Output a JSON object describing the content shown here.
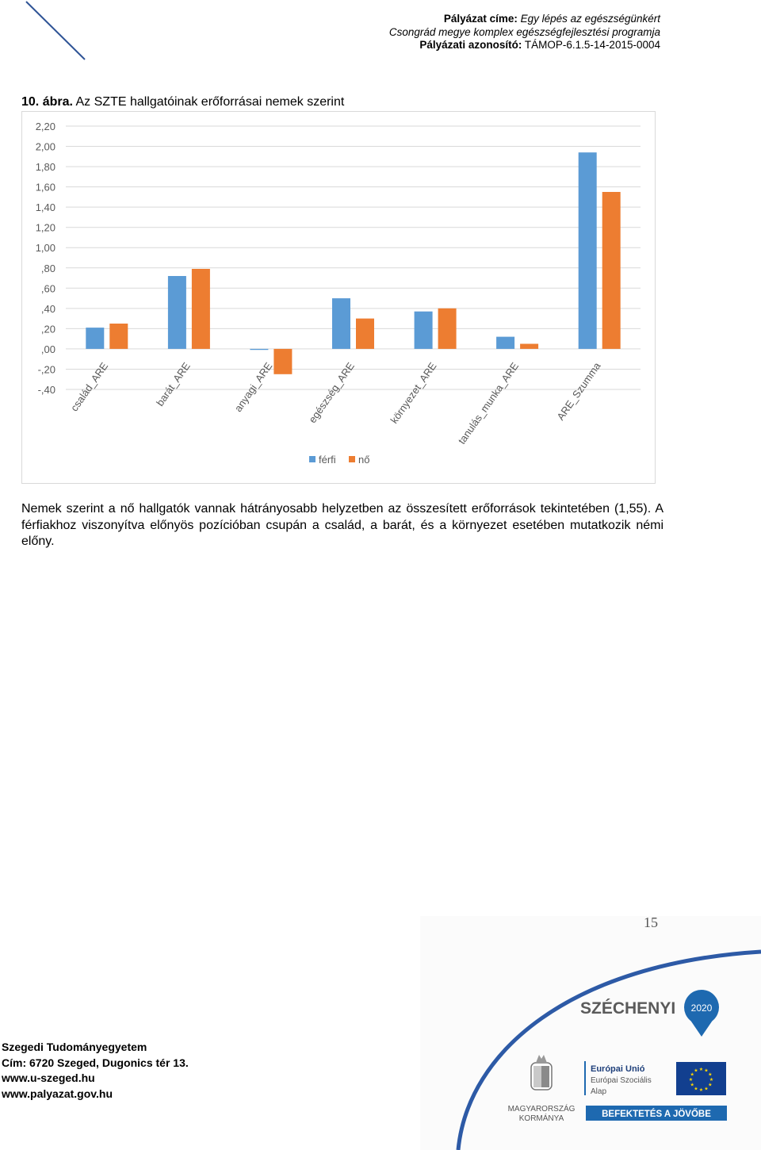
{
  "header": {
    "title_label": "Pályázat címe:",
    "title_value": "Egy lépés az egészségünkért",
    "program": "Csongrád megye komplex egészségfejlesztési programja",
    "id_label": "Pályázati azonosító:",
    "id_value": "TÁMOP-6.1.5-14-2015-0004"
  },
  "figure": {
    "label": "10. ábra.",
    "title": "Az SZTE hallgatóinak erőforrásai nemek szerint"
  },
  "body": {
    "paragraph": "Nemek szerint a nő hallgatók vannak hátrányosabb helyzetben az összesített erőforrások tekintetében (1,55). A férfiakhoz viszonyítva előnyös pozícióban csupán a család, a barát, és a környezet esetében mutatkozik némi előny."
  },
  "page_number": "15",
  "footer": {
    "institution": "Szegedi Tudományegyetem",
    "address": "Cím: 6720 Szeged, Dugonics tér 13.",
    "web1": "www.u-szeged.hu",
    "web2": "www.palyazat.gov.hu"
  },
  "logos": {
    "szechenyi": "SZÉCHENYI",
    "szechenyi_year": "2020",
    "gov_line1": "MAGYARORSZÁG",
    "gov_line2": "KORMÁNYA",
    "eu_line1": "Európai Unió",
    "eu_line2": "Európai Szociális",
    "eu_line3": "Alap",
    "eu_banner": "BEFEKTETÉS A JÖVŐBE"
  },
  "colors": {
    "ferfi": "#5b9bd5",
    "no": "#ed7d31",
    "grid": "#d9d9d9",
    "axis_text": "#595959"
  },
  "chart_data": {
    "type": "bar",
    "title": "",
    "xlabel": "",
    "ylabel": "",
    "categories": [
      "család_ARE",
      "barát_ARE",
      "anyagi_ARE",
      "egészség_ARE",
      "környezet_ARE",
      "tanulás_munka_ARE",
      "ARE_Szumma"
    ],
    "series": [
      {
        "name": "férfi",
        "values": [
          0.21,
          0.72,
          -0.01,
          0.5,
          0.37,
          0.12,
          1.94
        ]
      },
      {
        "name": "nő",
        "values": [
          0.25,
          0.79,
          -0.25,
          0.3,
          0.4,
          0.05,
          1.55
        ]
      }
    ],
    "yticks": [
      "2,20",
      "2,00",
      "1,80",
      "1,60",
      "1,40",
      "1,20",
      "1,00",
      ",80",
      ",60",
      ",40",
      ",20",
      ",00",
      "-,20",
      "-,40"
    ],
    "ylim": [
      -0.4,
      2.2
    ],
    "grid": true,
    "legend_position": "bottom"
  }
}
